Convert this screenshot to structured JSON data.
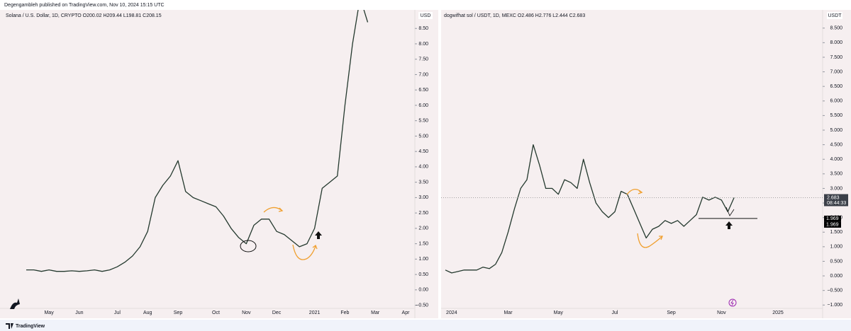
{
  "header": "Degengambleh published on TradingView.com, Nov 10, 2024 15:15 UTC",
  "footer": "TradingView",
  "chart_data": [
    {
      "type": "line",
      "title": "Solana / U.S. Dollar, 1D, CRYPTO  O200.02  H209.44  L198.81  C208.15",
      "unit": "USD",
      "color": "#24392e",
      "categories": [
        "",
        null,
        null,
        "May",
        null,
        null,
        null,
        "Jun",
        null,
        null,
        null,
        null,
        "Jul",
        null,
        null,
        null,
        "Aug",
        null,
        null,
        null,
        "Sep",
        null,
        null,
        null,
        null,
        "Oct",
        null,
        null,
        null,
        "Nov",
        null,
        null,
        null,
        "Dec",
        null,
        null,
        null,
        null,
        "2021",
        null,
        null,
        null,
        "Feb",
        null,
        null,
        null,
        "Mar",
        null,
        null,
        null,
        "Apr"
      ],
      "values": [
        0.65,
        0.65,
        0.6,
        0.65,
        0.6,
        0.6,
        0.62,
        0.6,
        0.62,
        0.65,
        0.6,
        0.65,
        0.75,
        0.9,
        1.1,
        1.4,
        1.9,
        3.0,
        3.4,
        3.7,
        4.2,
        3.2,
        3.0,
        2.9,
        2.8,
        2.7,
        2.4,
        2.0,
        1.7,
        1.5,
        2.1,
        2.3,
        2.3,
        1.9,
        1.8,
        1.6,
        1.4,
        1.5,
        2.0,
        3.3,
        3.5,
        3.7,
        6.0,
        8.0,
        9.5,
        8.7,
        null,
        null,
        null,
        null,
        null
      ],
      "ylim": [
        -0.74,
        9.08
      ],
      "yticks": [
        {
          "value": -0.5,
          "label": "−0.50"
        },
        {
          "value": 0,
          "label": "0.00"
        },
        {
          "value": 0.5,
          "label": "0.50"
        },
        {
          "value": 1,
          "label": "1.00"
        },
        {
          "value": 1.5,
          "label": "1.50"
        },
        {
          "value": 2,
          "label": "2.00"
        },
        {
          "value": 2.5,
          "label": "2.50"
        },
        {
          "value": 3,
          "label": "3.00"
        },
        {
          "value": 3.5,
          "label": "3.50"
        },
        {
          "value": 4,
          "label": "4.00"
        },
        {
          "value": 4.5,
          "label": "4.50"
        },
        {
          "value": 5,
          "label": "5.00"
        },
        {
          "value": 5.5,
          "label": "5.50"
        },
        {
          "value": 6,
          "label": "6.00"
        },
        {
          "value": 6.5,
          "label": "6.50"
        },
        {
          "value": 7,
          "label": "7.00"
        },
        {
          "value": 7.5,
          "label": "7.50"
        },
        {
          "value": 8,
          "label": "8.00"
        },
        {
          "value": 8.5,
          "label": "8.50"
        }
      ]
    },
    {
      "type": "line",
      "title": "dogwifhat sol / USDT, 1D, MEXC  O2.486  H2.776  L2.444  C2.683",
      "unit": "USDT",
      "color": "#24392e",
      "categories": [
        null,
        "2024",
        null,
        null,
        null,
        null,
        null,
        null,
        null,
        null,
        "Mar",
        null,
        null,
        null,
        null,
        null,
        null,
        null,
        "May",
        null,
        null,
        null,
        null,
        null,
        null,
        null,
        null,
        "Jul",
        null,
        null,
        null,
        null,
        null,
        null,
        null,
        null,
        "Sep",
        null,
        null,
        null,
        null,
        null,
        null,
        null,
        "Nov",
        null,
        null,
        null,
        null,
        null,
        null,
        null,
        null,
        "2025"
      ],
      "values": [
        0.2,
        0.1,
        0.15,
        0.2,
        0.2,
        0.2,
        0.3,
        0.25,
        0.4,
        0.8,
        1.5,
        2.3,
        3.0,
        3.3,
        4.5,
        3.8,
        3.0,
        3.0,
        2.8,
        3.3,
        3.2,
        3.0,
        4.0,
        3.2,
        2.5,
        2.2,
        2.0,
        2.2,
        2.9,
        2.8,
        2.3,
        1.8,
        1.3,
        1.6,
        1.7,
        1.9,
        1.8,
        1.9,
        1.7,
        1.9,
        2.1,
        2.7,
        2.6,
        2.7,
        2.6,
        2.2,
        2.683,
        null,
        null,
        null,
        null,
        null,
        null,
        null
      ],
      "countdown": "08:44:33",
      "levels": [
        1.969,
        1.969
      ],
      "ylim": [
        -1.26,
        9.1
      ],
      "yticks": [
        {
          "value": -1,
          "label": "−1.000"
        },
        {
          "value": -0.5,
          "label": "−0.500"
        },
        {
          "value": 0,
          "label": "0.000"
        },
        {
          "value": 0.5,
          "label": "0.500"
        },
        {
          "value": 1,
          "label": "1.000"
        },
        {
          "value": 1.5,
          "label": "1.500"
        },
        {
          "value": 2,
          "label": "2.000"
        },
        {
          "value": 2.5,
          "label": "2.500"
        },
        {
          "value": 3,
          "label": "3.000"
        },
        {
          "value": 3.5,
          "label": "3.500"
        },
        {
          "value": 4,
          "label": "4.000"
        },
        {
          "value": 4.5,
          "label": "4.500"
        },
        {
          "value": 5,
          "label": "5.000"
        },
        {
          "value": 5.5,
          "label": "5.500"
        },
        {
          "value": 6,
          "label": "6.000"
        },
        {
          "value": 6.5,
          "label": "6.500"
        },
        {
          "value": 7,
          "label": "7.000"
        },
        {
          "value": 7.5,
          "label": "7.500"
        },
        {
          "value": 8,
          "label": "8.000"
        },
        {
          "value": 8.5,
          "label": "8.500"
        }
      ]
    }
  ]
}
